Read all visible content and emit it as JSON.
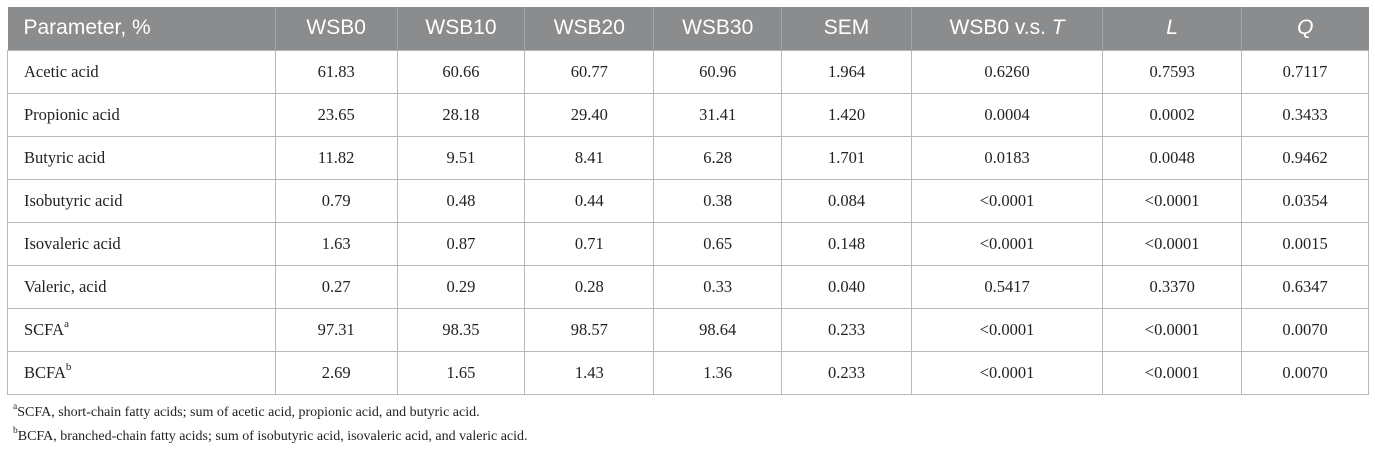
{
  "table": {
    "headers": {
      "parameter": "Parameter, %",
      "c1": "WSB0",
      "c2": "WSB10",
      "c3": "WSB20",
      "c4": "WSB30",
      "c5": "SEM",
      "c6_prefix": "WSB0 v.s. ",
      "c6_italic": "T",
      "c7": "L",
      "c8": "Q"
    },
    "rows": [
      {
        "name": "Acetic acid",
        "sup": "",
        "cells": [
          "61.83",
          "60.66",
          "60.77",
          "60.96",
          "1.964",
          "0.6260",
          "0.7593",
          "0.7117"
        ]
      },
      {
        "name": "Propionic acid",
        "sup": "",
        "cells": [
          "23.65",
          "28.18",
          "29.40",
          "31.41",
          "1.420",
          "0.0004",
          "0.0002",
          "0.3433"
        ]
      },
      {
        "name": "Butyric acid",
        "sup": "",
        "cells": [
          "11.82",
          "9.51",
          "8.41",
          "6.28",
          "1.701",
          "0.0183",
          "0.0048",
          "0.9462"
        ]
      },
      {
        "name": "Isobutyric acid",
        "sup": "",
        "cells": [
          "0.79",
          "0.48",
          "0.44",
          "0.38",
          "0.084",
          "<0.0001",
          "<0.0001",
          "0.0354"
        ]
      },
      {
        "name": "Isovaleric acid",
        "sup": "",
        "cells": [
          "1.63",
          "0.87",
          "0.71",
          "0.65",
          "0.148",
          "<0.0001",
          "<0.0001",
          "0.0015"
        ]
      },
      {
        "name": "Valeric, acid",
        "sup": "",
        "cells": [
          "0.27",
          "0.29",
          "0.28",
          "0.33",
          "0.040",
          "0.5417",
          "0.3370",
          "0.6347"
        ]
      },
      {
        "name": "SCFA",
        "sup": "a",
        "cells": [
          "97.31",
          "98.35",
          "98.57",
          "98.64",
          "0.233",
          "<0.0001",
          "<0.0001",
          "0.0070"
        ]
      },
      {
        "name": "BCFA",
        "sup": "b",
        "cells": [
          "2.69",
          "1.65",
          "1.43",
          "1.36",
          "0.233",
          "<0.0001",
          "<0.0001",
          "0.0070"
        ]
      }
    ]
  },
  "footnotes": [
    {
      "mark": "a",
      "text": "SCFA, short-chain fatty acids; sum of acetic acid, propionic acid, and butyric acid."
    },
    {
      "mark": "b",
      "text": "BCFA, branched-chain fatty acids; sum of isobutyric acid, isovaleric acid, and valeric acid."
    }
  ]
}
